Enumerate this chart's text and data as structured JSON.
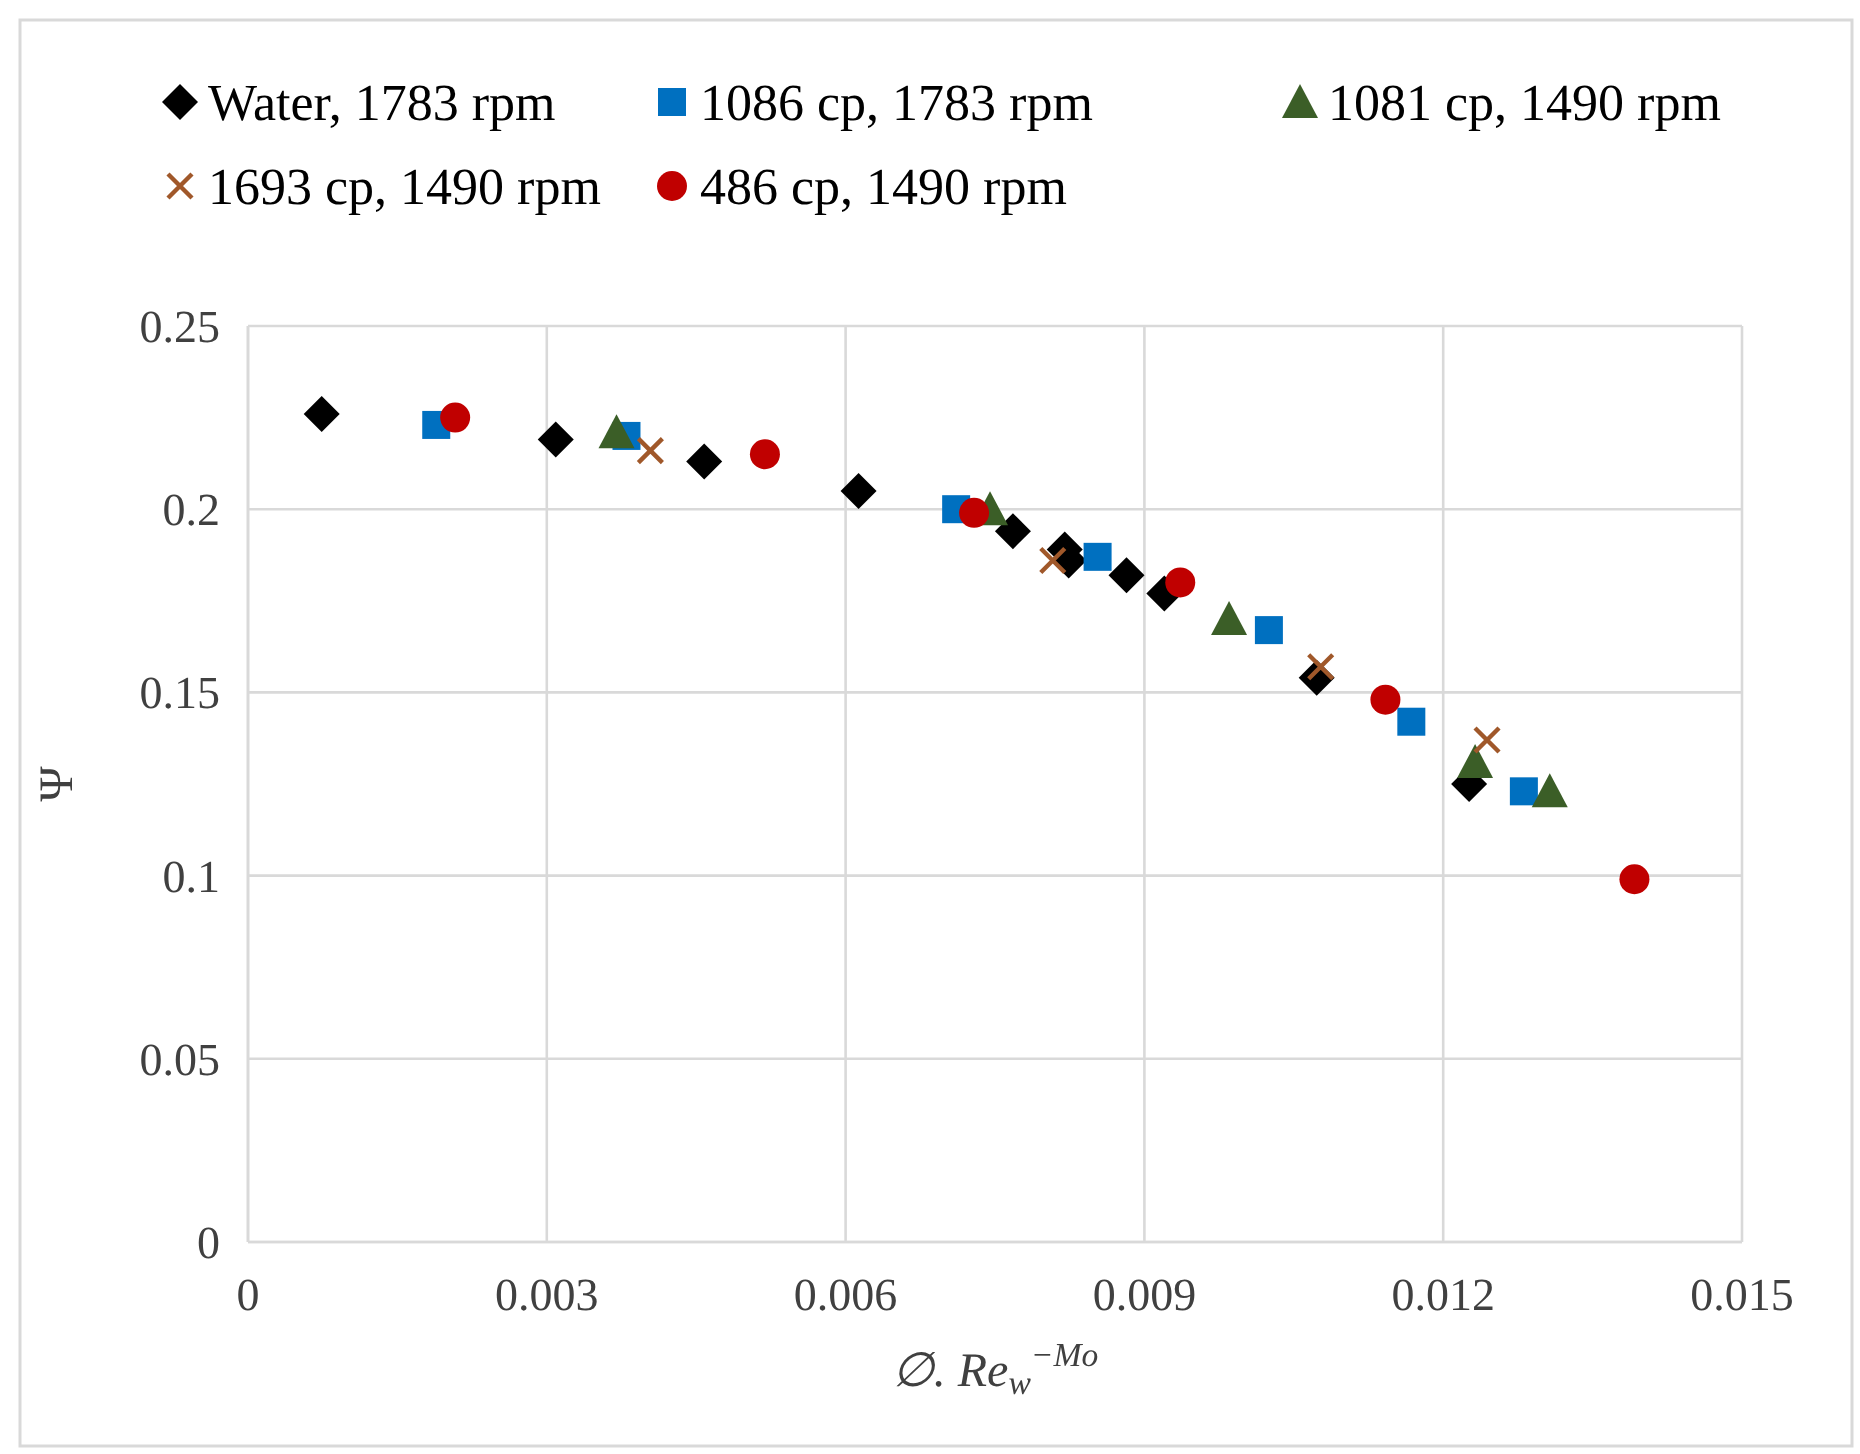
{
  "chart_data": {
    "type": "scatter",
    "xlabel": "∅. Re$_{w}$$^{−Mo}$",
    "ylabel": "Ψ",
    "xlim": [
      0,
      0.015
    ],
    "xticks": [
      0,
      0.003,
      0.006,
      0.009,
      0.012,
      0.015
    ],
    "ylim": [
      0,
      0.25
    ],
    "yticks": [
      0,
      0.05,
      0.1,
      0.15,
      0.2,
      0.25
    ],
    "grid": true,
    "legend": "top",
    "series": [
      {
        "name": "Water, 1783 rpm",
        "color": "#000000",
        "marker": "diamond",
        "x": [
          0.00074,
          0.00309,
          0.00458,
          0.00613,
          0.00768,
          0.0082,
          0.00824,
          0.00882,
          0.0092,
          0.01073,
          0.01226
        ],
        "values": [
          0.226,
          0.219,
          0.213,
          0.205,
          0.194,
          0.189,
          0.186,
          0.182,
          0.177,
          0.154,
          0.125
        ]
      },
      {
        "name": "1086 cp, 1783 rpm",
        "color": "#0070c0",
        "marker": "square",
        "x": [
          0.00189,
          0.0038,
          0.00711,
          0.00853,
          0.01025,
          0.01168,
          0.01281
        ],
        "values": [
          0.223,
          0.22,
          0.2,
          0.187,
          0.167,
          0.142,
          0.123
        ]
      },
      {
        "name": "1081 cp, 1490 rpm",
        "color": "#3b5e27",
        "marker": "triangle",
        "x": [
          0.0037,
          0.00745,
          0.00985,
          0.01232,
          0.01307
        ],
        "values": [
          0.221,
          0.2,
          0.17,
          0.131,
          0.123
        ]
      },
      {
        "name": "1693 cp, 1490 rpm",
        "color": "#a0582a",
        "marker": "cross",
        "x": [
          0.00404,
          0.00808,
          0.01077,
          0.01244
        ],
        "values": [
          0.216,
          0.186,
          0.157,
          0.137
        ]
      },
      {
        "name": "486 cp, 1490 rpm",
        "color": "#c00000",
        "marker": "circle",
        "x": [
          0.00208,
          0.00519,
          0.00729,
          0.00936,
          0.01142,
          0.01392
        ],
        "values": [
          0.225,
          0.215,
          0.199,
          0.18,
          0.148,
          0.099
        ]
      }
    ]
  }
}
